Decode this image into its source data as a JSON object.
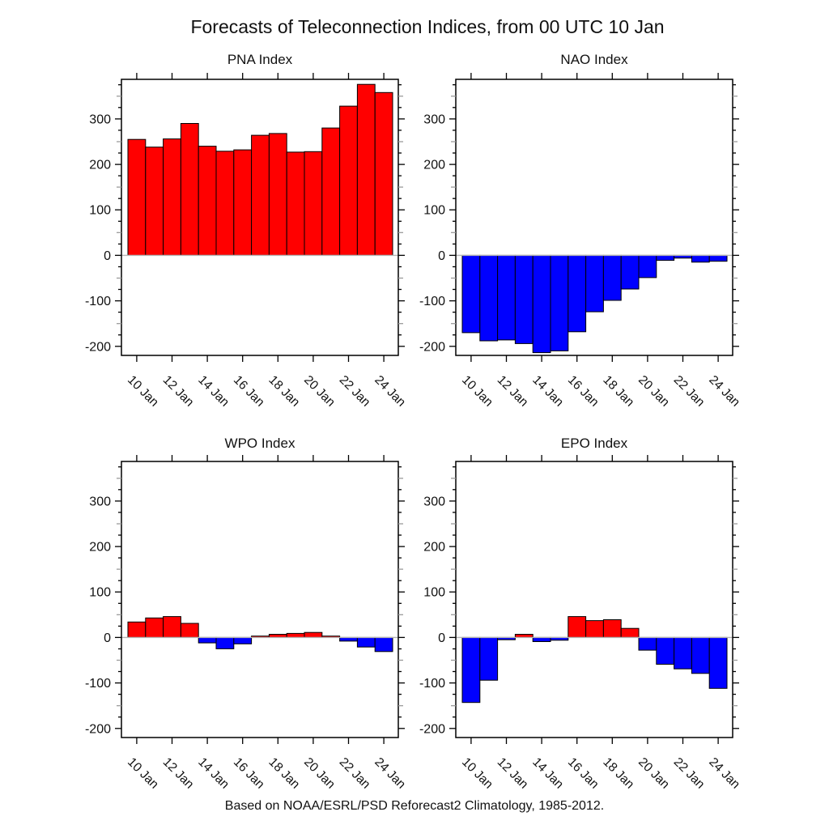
{
  "title": "Forecasts of Teleconnection Indices, from 00 UTC 10 Jan",
  "caption": "Based on NOAA/ESRL/PSD Reforecast2 Climatology, 1985-2012.",
  "colors": {
    "positive": "#ff0000",
    "negative": "#0000ff",
    "zero_line": "#b4b4b4",
    "frame": "#000000",
    "background": "#ffffff"
  },
  "chart_data": [
    {
      "type": "bar",
      "title": "PNA Index",
      "categories": [
        "10 Jan",
        "11 Jan",
        "12 Jan",
        "13 Jan",
        "14 Jan",
        "15 Jan",
        "16 Jan",
        "17 Jan",
        "18 Jan",
        "19 Jan",
        "20 Jan",
        "21 Jan",
        "22 Jan",
        "23 Jan",
        "24 Jan"
      ],
      "values": [
        255,
        238,
        256,
        290,
        240,
        229,
        232,
        264,
        268,
        227,
        228,
        280,
        328,
        376,
        358
      ],
      "xtick_labels": [
        "10 Jan",
        "12 Jan",
        "14 Jan",
        "16 Jan",
        "18 Jan",
        "20 Jan",
        "22 Jan",
        "24 Jan"
      ],
      "ytick_labels": [
        "300",
        "200",
        "100",
        "0",
        "-100",
        "-200"
      ],
      "ylim": [
        -220,
        387
      ],
      "y_major_step": 100,
      "y_minor_step": 25,
      "grid": false,
      "legend": "none",
      "bar_positive_color": "#ff0000",
      "bar_negative_color": "#0000ff"
    },
    {
      "type": "bar",
      "title": "NAO Index",
      "categories": [
        "10 Jan",
        "11 Jan",
        "12 Jan",
        "13 Jan",
        "14 Jan",
        "15 Jan",
        "16 Jan",
        "17 Jan",
        "18 Jan",
        "19 Jan",
        "20 Jan",
        "21 Jan",
        "22 Jan",
        "23 Jan",
        "24 Jan"
      ],
      "values": [
        -170,
        -188,
        -186,
        -194,
        -214,
        -210,
        -168,
        -124,
        -99,
        -74,
        -49,
        -11,
        -6,
        -15,
        -13
      ],
      "xtick_labels": [
        "10 Jan",
        "12 Jan",
        "14 Jan",
        "16 Jan",
        "18 Jan",
        "20 Jan",
        "22 Jan",
        "24 Jan"
      ],
      "ytick_labels": [
        "300",
        "200",
        "100",
        "0",
        "-100",
        "-200"
      ],
      "ylim": [
        -220,
        387
      ],
      "y_major_step": 100,
      "y_minor_step": 25,
      "grid": false,
      "legend": "none",
      "bar_positive_color": "#ff0000",
      "bar_negative_color": "#0000ff"
    },
    {
      "type": "bar",
      "title": "WPO Index",
      "categories": [
        "10 Jan",
        "11 Jan",
        "12 Jan",
        "13 Jan",
        "14 Jan",
        "15 Jan",
        "16 Jan",
        "17 Jan",
        "18 Jan",
        "19 Jan",
        "20 Jan",
        "21 Jan",
        "22 Jan",
        "23 Jan",
        "24 Jan"
      ],
      "values": [
        34,
        43,
        46,
        31,
        -12,
        -25,
        -14,
        3,
        7,
        9,
        11,
        3,
        -8,
        -21,
        -31
      ],
      "xtick_labels": [
        "10 Jan",
        "12 Jan",
        "14 Jan",
        "16 Jan",
        "18 Jan",
        "20 Jan",
        "22 Jan",
        "24 Jan"
      ],
      "ytick_labels": [
        "300",
        "200",
        "100",
        "0",
        "-100",
        "-200"
      ],
      "ylim": [
        -220,
        387
      ],
      "y_major_step": 100,
      "y_minor_step": 25,
      "grid": false,
      "legend": "none",
      "bar_positive_color": "#ff0000",
      "bar_negative_color": "#0000ff"
    },
    {
      "type": "bar",
      "title": "EPO Index",
      "categories": [
        "10 Jan",
        "11 Jan",
        "12 Jan",
        "13 Jan",
        "14 Jan",
        "15 Jan",
        "16 Jan",
        "17 Jan",
        "18 Jan",
        "19 Jan",
        "20 Jan",
        "21 Jan",
        "22 Jan",
        "23 Jan",
        "24 Jan"
      ],
      "values": [
        -143,
        -94,
        -5,
        7,
        -9,
        -6,
        46,
        37,
        39,
        20,
        -28,
        -59,
        -69,
        -79,
        -112
      ],
      "xtick_labels": [
        "10 Jan",
        "12 Jan",
        "14 Jan",
        "16 Jan",
        "18 Jan",
        "20 Jan",
        "22 Jan",
        "24 Jan"
      ],
      "ytick_labels": [
        "300",
        "200",
        "100",
        "0",
        "-100",
        "-200"
      ],
      "ylim": [
        -220,
        387
      ],
      "y_major_step": 100,
      "y_minor_step": 25,
      "grid": false,
      "legend": "none",
      "bar_positive_color": "#ff0000",
      "bar_negative_color": "#0000ff"
    }
  ]
}
